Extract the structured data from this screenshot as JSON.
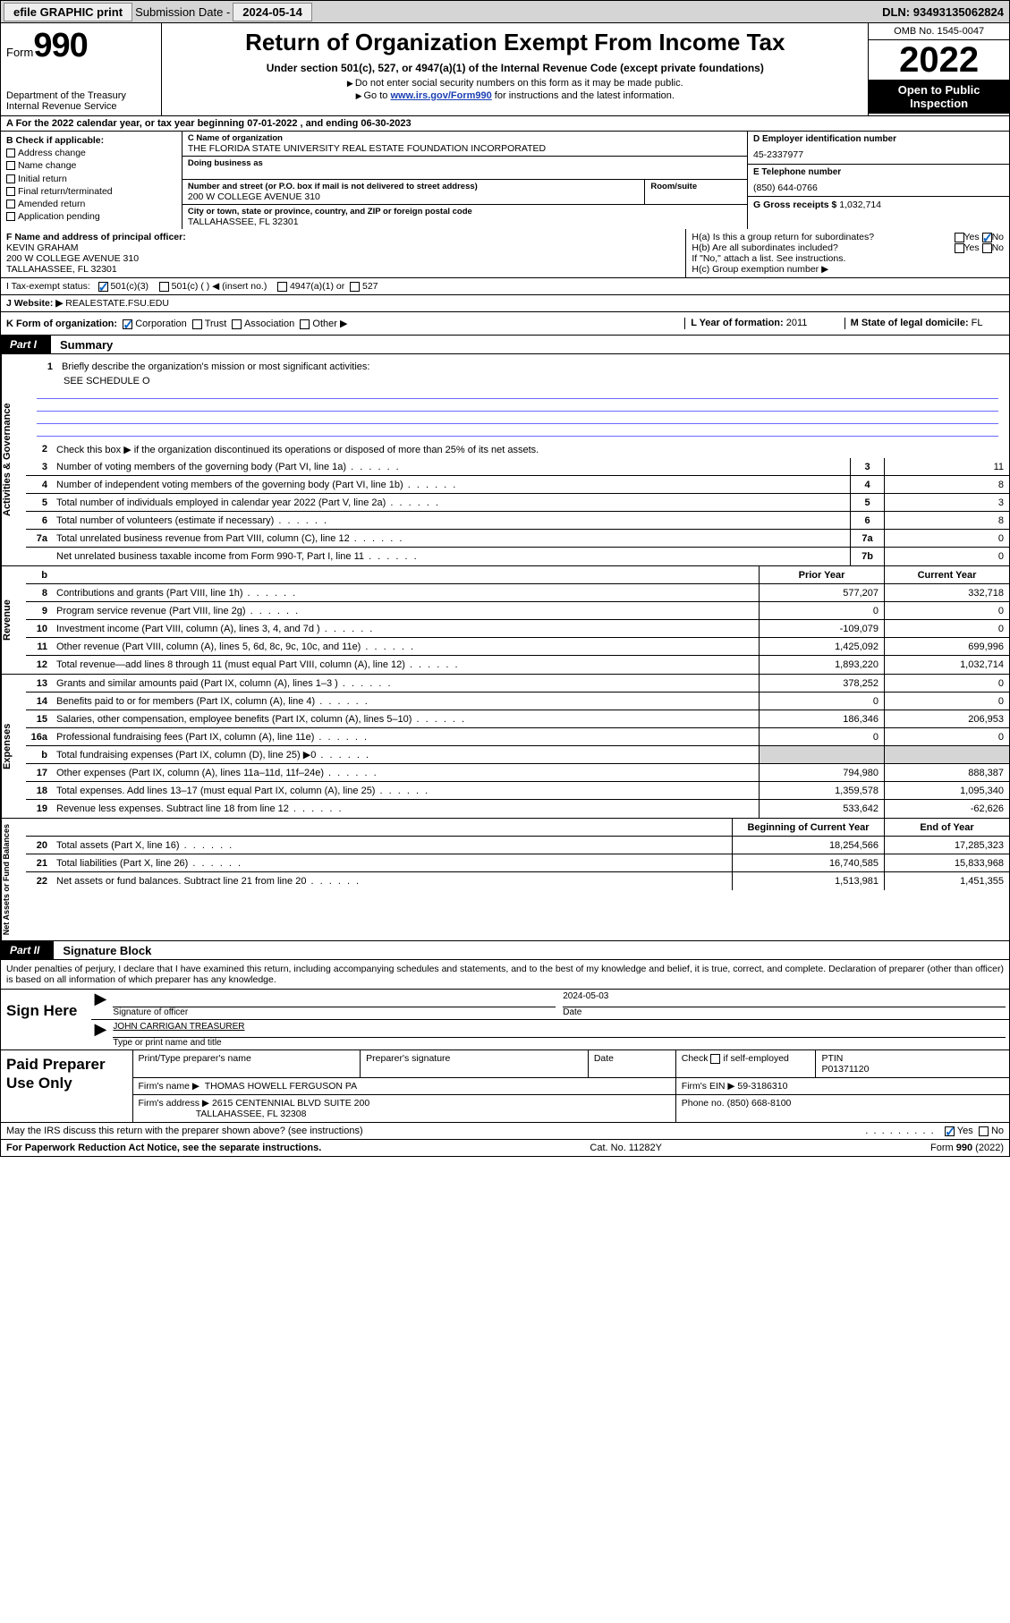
{
  "topbar": {
    "efile": "efile GRAPHIC print",
    "submission_label": "Submission Date - ",
    "submission_date": "2024-05-14",
    "dln_label": "DLN: ",
    "dln": "93493135062824"
  },
  "header": {
    "form_word": "Form",
    "form_num": "990",
    "dept1": "Department of the Treasury",
    "dept2": "Internal Revenue Service",
    "title": "Return of Organization Exempt From Income Tax",
    "subtitle": "Under section 501(c), 527, or 4947(a)(1) of the Internal Revenue Code (except private foundations)",
    "note1": "Do not enter social security numbers on this form as it may be made public.",
    "note2_a": "Go to ",
    "note2_link": "www.irs.gov/Form990",
    "note2_b": " for instructions and the latest information.",
    "omb": "OMB No. 1545-0047",
    "year": "2022",
    "open": "Open to Public Inspection"
  },
  "row_a": {
    "text_a": "A For the 2022 calendar year, or tax year beginning ",
    "begin": "07-01-2022",
    "text_b": " , and ending ",
    "end": "06-30-2023"
  },
  "block_b": {
    "b_label": "B Check if applicable:",
    "opts": [
      "Address change",
      "Name change",
      "Initial return",
      "Final return/terminated",
      "Amended return",
      "Application pending"
    ],
    "c_label": "C Name of organization",
    "c_name": "THE FLORIDA STATE UNIVERSITY REAL ESTATE FOUNDATION INCORPORATED",
    "dba_label": "Doing business as",
    "addr_label": "Number and street (or P.O. box if mail is not delivered to street address)",
    "room_label": "Room/suite",
    "addr": "200 W COLLEGE AVENUE 310",
    "city_label": "City or town, state or province, country, and ZIP or foreign postal code",
    "city": "TALLAHASSEE, FL  32301",
    "d_label": "D Employer identification number",
    "d_val": "45-2337977",
    "e_label": "E Telephone number",
    "e_val": "(850) 644-0766",
    "g_label": "G Gross receipts $ ",
    "g_val": "1,032,714"
  },
  "block_fh": {
    "f_label": "F Name and address of principal officer:",
    "f_name": "KEVIN GRAHAM",
    "f_addr1": "200 W COLLEGE AVENUE 310",
    "f_addr2": "TALLAHASSEE, FL  32301",
    "ha_label": "H(a)  Is this a group return for subordinates?",
    "hb_label": "H(b)  Are all subordinates included?",
    "hb_note": "If \"No,\" attach a list. See instructions.",
    "hc_label": "H(c)  Group exemption number ▶",
    "yes": "Yes",
    "no": "No"
  },
  "row_i": {
    "label": "I   Tax-exempt status:",
    "o1": "501(c)(3)",
    "o2": "501(c) (  ) ◀ (insert no.)",
    "o3": "4947(a)(1) or",
    "o4": "527"
  },
  "row_j": {
    "label": "J   Website: ▶",
    "val": " REALESTATE.FSU.EDU"
  },
  "row_k": {
    "label": "K Form of organization:",
    "o1": "Corporation",
    "o2": "Trust",
    "o3": "Association",
    "o4": "Other ▶",
    "l_label": "L Year of formation: ",
    "l_val": "2011",
    "m_label": "M State of legal domicile: ",
    "m_val": "FL"
  },
  "part1": {
    "tab": "Part I",
    "title": "Summary"
  },
  "summary": {
    "q1": "Briefly describe the organization's mission or most significant activities:",
    "q1_val": "SEE SCHEDULE O",
    "q2": "Check this box ▶      if the organization discontinued its operations or disposed of more than 25% of its net assets.",
    "lines_gov": [
      {
        "n": "3",
        "d": "Number of voting members of the governing body (Part VI, line 1a)",
        "box": "3",
        "v": "11"
      },
      {
        "n": "4",
        "d": "Number of independent voting members of the governing body (Part VI, line 1b)",
        "box": "4",
        "v": "8"
      },
      {
        "n": "5",
        "d": "Total number of individuals employed in calendar year 2022 (Part V, line 2a)",
        "box": "5",
        "v": "3"
      },
      {
        "n": "6",
        "d": "Total number of volunteers (estimate if necessary)",
        "box": "6",
        "v": "8"
      },
      {
        "n": "7a",
        "d": "Total unrelated business revenue from Part VIII, column (C), line 12",
        "box": "7a",
        "v": "0"
      },
      {
        "n": "",
        "d": "Net unrelated business taxable income from Form 990-T, Part I, line 11",
        "box": "7b",
        "v": "0"
      }
    ],
    "hdr_prior": "Prior Year",
    "hdr_curr": "Current Year",
    "lines_rev": [
      {
        "n": "8",
        "d": "Contributions and grants (Part VIII, line 1h)",
        "p": "577,207",
        "c": "332,718"
      },
      {
        "n": "9",
        "d": "Program service revenue (Part VIII, line 2g)",
        "p": "0",
        "c": "0"
      },
      {
        "n": "10",
        "d": "Investment income (Part VIII, column (A), lines 3, 4, and 7d )",
        "p": "-109,079",
        "c": "0"
      },
      {
        "n": "11",
        "d": "Other revenue (Part VIII, column (A), lines 5, 6d, 8c, 9c, 10c, and 11e)",
        "p": "1,425,092",
        "c": "699,996"
      },
      {
        "n": "12",
        "d": "Total revenue—add lines 8 through 11 (must equal Part VIII, column (A), line 12)",
        "p": "1,893,220",
        "c": "1,032,714"
      }
    ],
    "lines_exp": [
      {
        "n": "13",
        "d": "Grants and similar amounts paid (Part IX, column (A), lines 1–3 )",
        "p": "378,252",
        "c": "0"
      },
      {
        "n": "14",
        "d": "Benefits paid to or for members (Part IX, column (A), line 4)",
        "p": "0",
        "c": "0"
      },
      {
        "n": "15",
        "d": "Salaries, other compensation, employee benefits (Part IX, column (A), lines 5–10)",
        "p": "186,346",
        "c": "206,953"
      },
      {
        "n": "16a",
        "d": "Professional fundraising fees (Part IX, column (A), line 11e)",
        "p": "0",
        "c": "0"
      },
      {
        "n": "b",
        "d": "Total fundraising expenses (Part IX, column (D), line 25) ▶0",
        "p": "",
        "c": "",
        "grey": true
      },
      {
        "n": "17",
        "d": "Other expenses (Part IX, column (A), lines 11a–11d, 11f–24e)",
        "p": "794,980",
        "c": "888,387"
      },
      {
        "n": "18",
        "d": "Total expenses. Add lines 13–17 (must equal Part IX, column (A), line 25)",
        "p": "1,359,578",
        "c": "1,095,340"
      },
      {
        "n": "19",
        "d": "Revenue less expenses. Subtract line 18 from line 12",
        "p": "533,642",
        "c": "-62,626"
      }
    ],
    "hdr_beg": "Beginning of Current Year",
    "hdr_end": "End of Year",
    "lines_net": [
      {
        "n": "20",
        "d": "Total assets (Part X, line 16)",
        "p": "18,254,566",
        "c": "17,285,323"
      },
      {
        "n": "21",
        "d": "Total liabilities (Part X, line 26)",
        "p": "16,740,585",
        "c": "15,833,968"
      },
      {
        "n": "22",
        "d": "Net assets or fund balances. Subtract line 21 from line 20",
        "p": "1,513,981",
        "c": "1,451,355"
      }
    ],
    "vlab_gov": "Activities & Governance",
    "vlab_rev": "Revenue",
    "vlab_exp": "Expenses",
    "vlab_net": "Net Assets or Fund Balances"
  },
  "part2": {
    "tab": "Part II",
    "title": "Signature Block"
  },
  "sig_para": "Under penalties of perjury, I declare that I have examined this return, including accompanying schedules and statements, and to the best of my knowledge and belief, it is true, correct, and complete. Declaration of preparer (other than officer) is based on all information of which preparer has any knowledge.",
  "sign": {
    "lab": "Sign Here",
    "sig_of_officer": "Signature of officer",
    "date_lab": "Date",
    "date": "2024-05-03",
    "name": "JOHN CARRIGAN TREASURER",
    "type_lab": "Type or print name and title"
  },
  "prep": {
    "lab": "Paid Preparer Use Only",
    "h1": "Print/Type preparer's name",
    "h2": "Preparer's signature",
    "h3": "Date",
    "h4a": "Check",
    "h4b": "if self-employed",
    "h5": "PTIN",
    "ptin": "P01371120",
    "firm_lab": "Firm's name    ▶",
    "firm": "THOMAS HOWELL FERGUSON PA",
    "ein_lab": "Firm's EIN ▶ ",
    "ein": "59-3186310",
    "addr_lab": "Firm's address ▶",
    "addr1": "2615 CENTENNIAL BLVD SUITE 200",
    "addr2": "TALLAHASSEE, FL  32308",
    "phone_lab": "Phone no. ",
    "phone": "(850) 668-8100"
  },
  "discuss": {
    "q": "May the IRS discuss this return with the preparer shown above? (see instructions)",
    "yes": "Yes",
    "no": "No"
  },
  "footer": {
    "l": "For Paperwork Reduction Act Notice, see the separate instructions.",
    "m": "Cat. No. 11282Y",
    "r": "Form 990 (2022)"
  }
}
